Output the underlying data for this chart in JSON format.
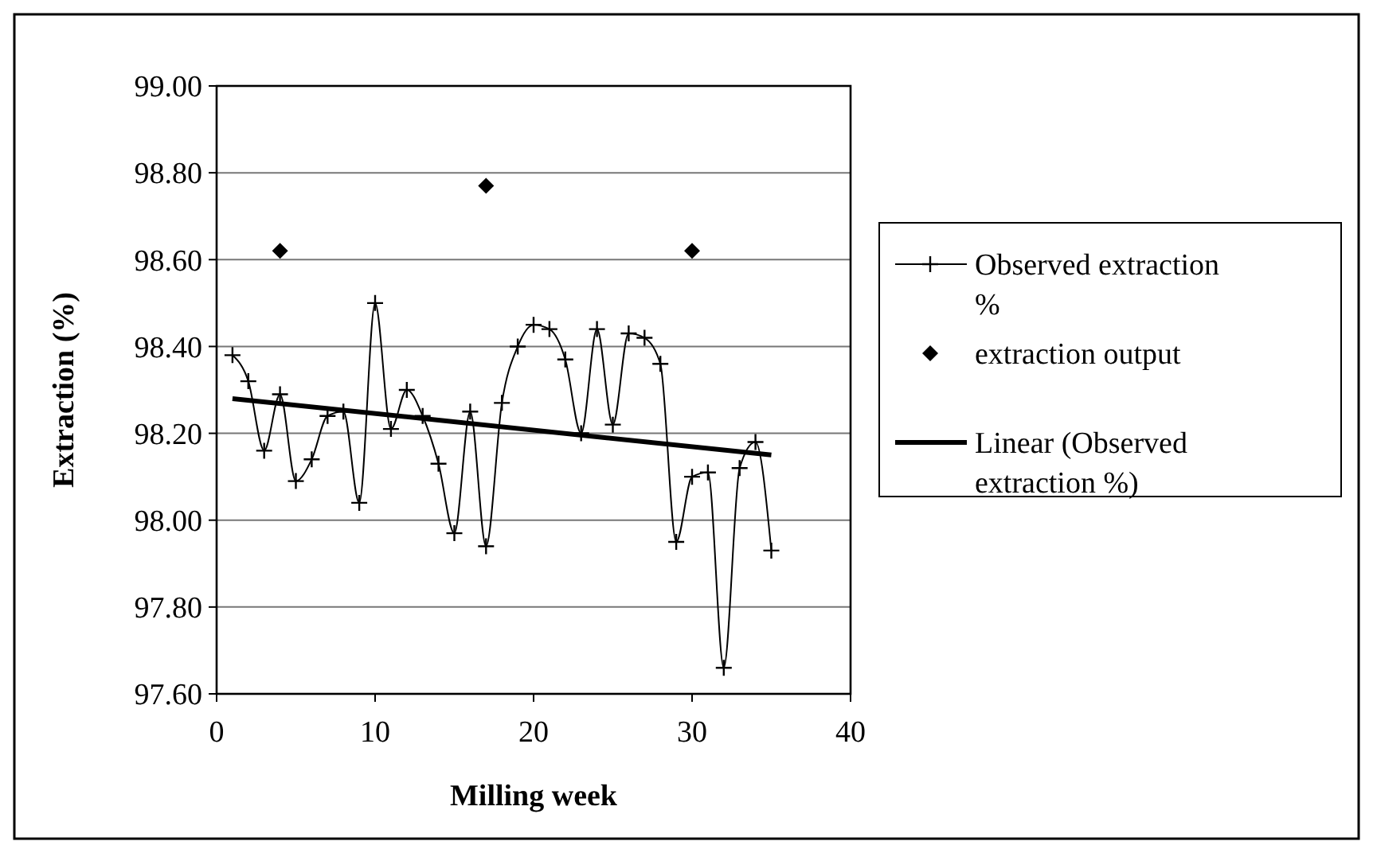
{
  "chart_data": {
    "type": "line",
    "xlabel": "Milling week",
    "ylabel": "Extraction (%)",
    "xlim": [
      0,
      40
    ],
    "xticks": [
      0,
      10,
      20,
      30,
      40
    ],
    "ylim": [
      97.6,
      99.0
    ],
    "yticks": [
      {
        "value": 97.6,
        "label": "97.60"
      },
      {
        "value": 97.8,
        "label": "97.80"
      },
      {
        "value": 98.0,
        "label": "98.00"
      },
      {
        "value": 98.2,
        "label": "98.20"
      },
      {
        "value": 98.4,
        "label": "98.40"
      },
      {
        "value": 98.6,
        "label": "98.60"
      },
      {
        "value": 98.8,
        "label": "98.80"
      },
      {
        "value": 99.0,
        "label": "99.00"
      }
    ],
    "grid": "y",
    "legend": "right",
    "series": [
      {
        "name": "Observed extraction %",
        "type": "line",
        "color": "#000000",
        "marker": "cross",
        "x": [
          1,
          2,
          3,
          4,
          5,
          6,
          7,
          8,
          9,
          10,
          11,
          12,
          13,
          14,
          15,
          16,
          17,
          18,
          19,
          20,
          21,
          22,
          23,
          24,
          25,
          26,
          27,
          28,
          29,
          30,
          31,
          32,
          33,
          34,
          35
        ],
        "values": [
          98.38,
          98.32,
          98.16,
          98.29,
          98.09,
          98.14,
          98.24,
          98.25,
          98.04,
          98.5,
          98.21,
          98.3,
          98.24,
          98.13,
          97.97,
          98.25,
          97.94,
          98.27,
          98.4,
          98.45,
          98.44,
          98.37,
          98.2,
          98.44,
          98.22,
          98.43,
          98.42,
          98.36,
          97.95,
          98.1,
          98.11,
          97.66,
          98.12,
          98.18,
          97.93
        ]
      },
      {
        "name": "extraction output",
        "type": "scatter",
        "color": "#000000",
        "marker": "diamond",
        "x": [
          4,
          17,
          30
        ],
        "values": [
          98.62,
          98.77,
          98.62
        ]
      },
      {
        "name": "Linear (Observed extraction %)",
        "type": "line",
        "color": "#000000",
        "marker": "none",
        "x": [
          1,
          35
        ],
        "values": [
          98.28,
          98.15
        ]
      }
    ]
  }
}
